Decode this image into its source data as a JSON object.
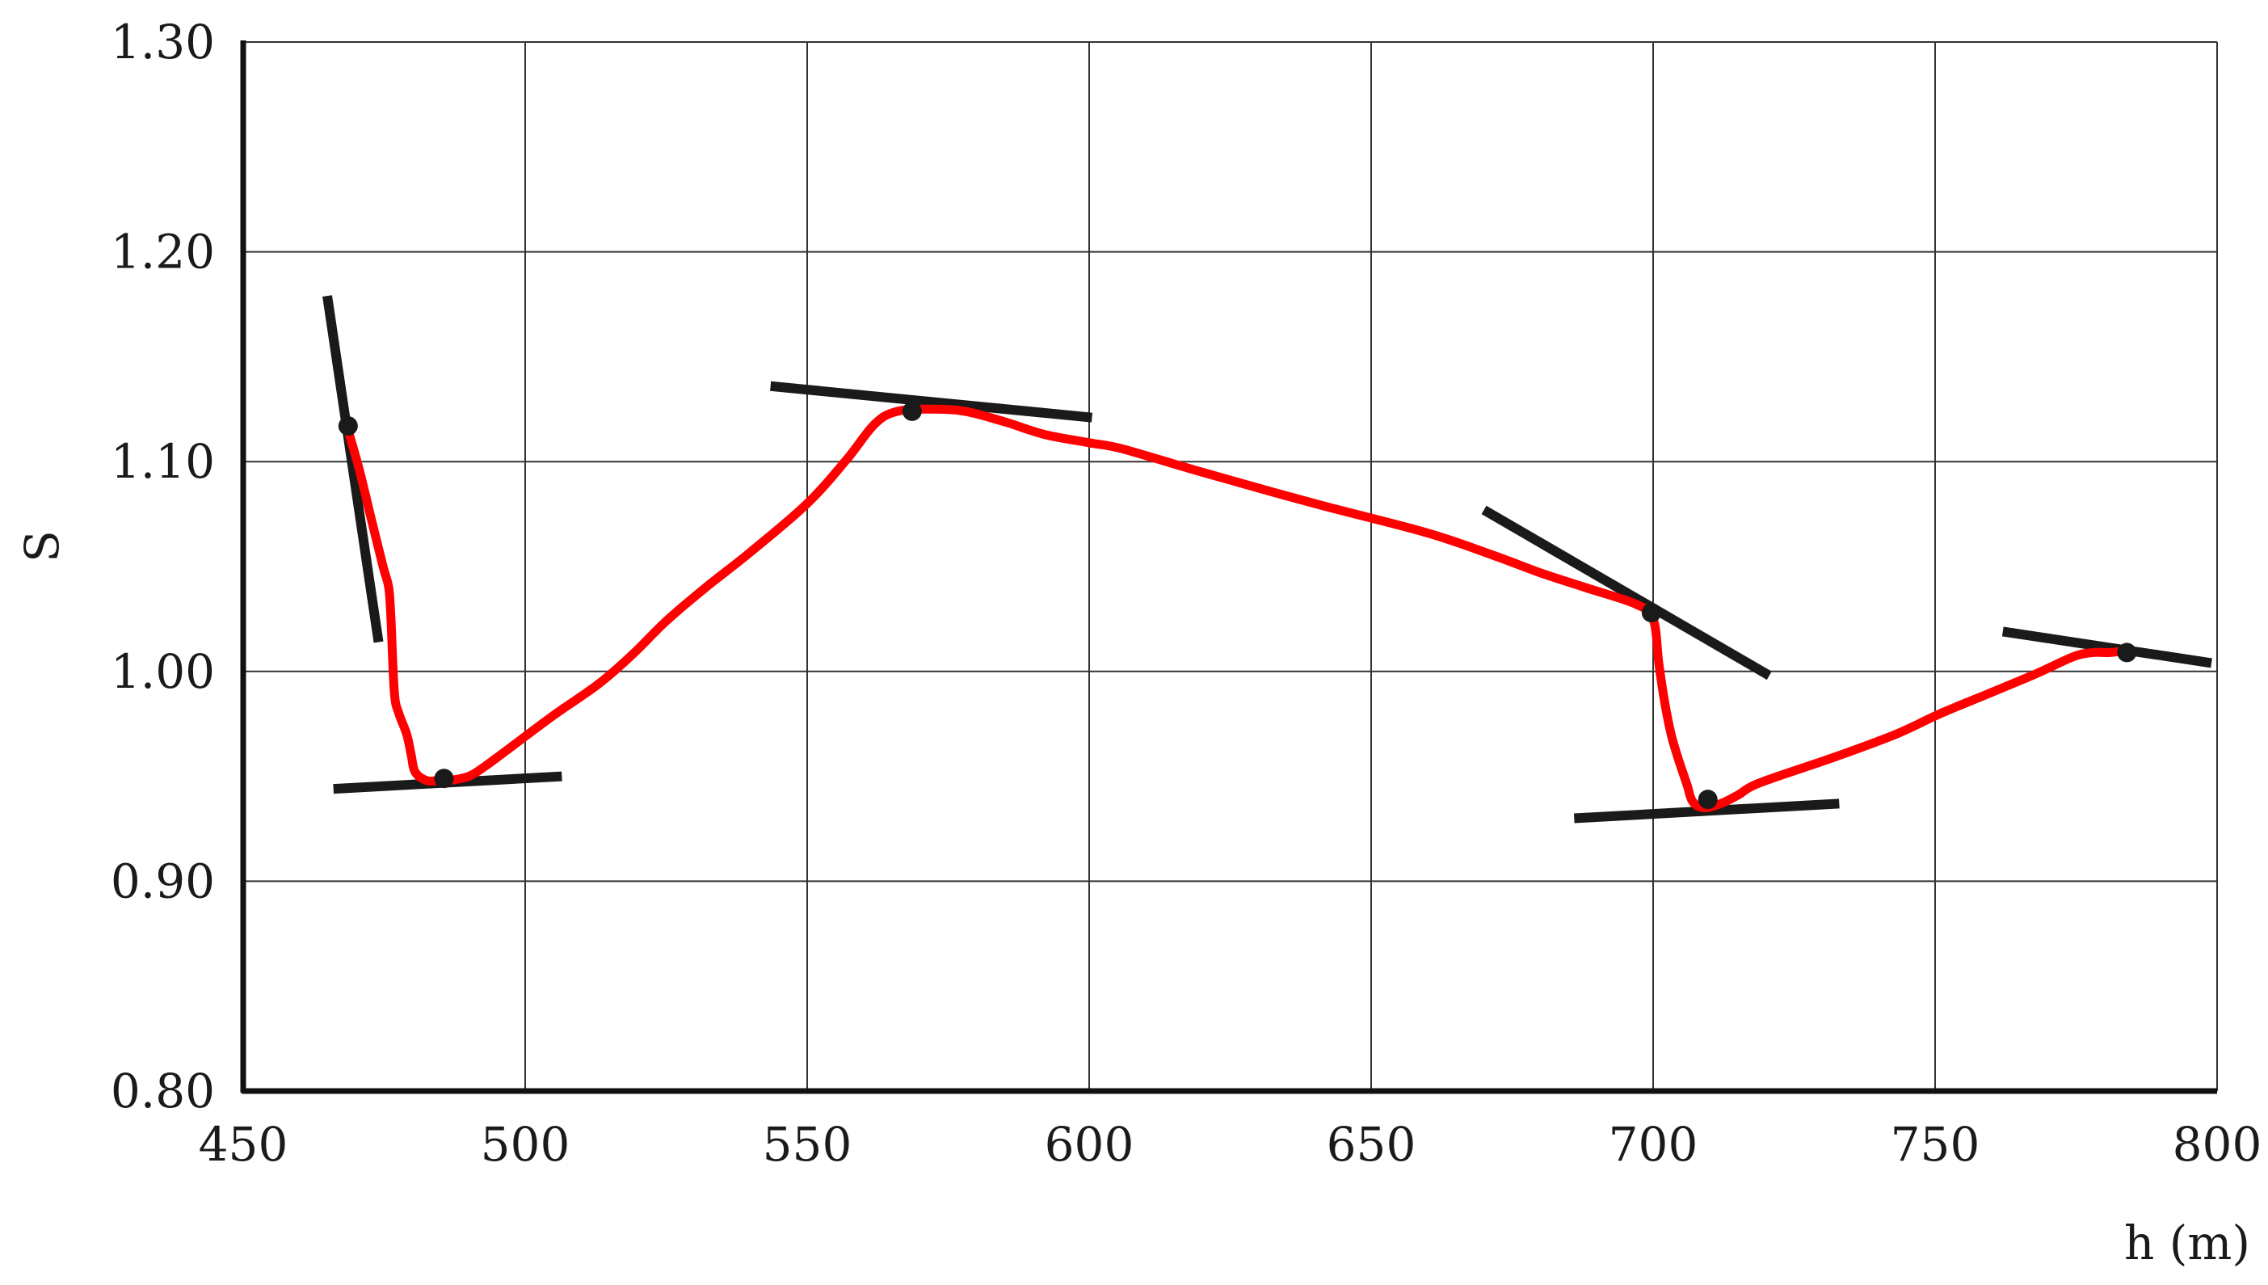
{
  "chart_data": {
    "type": "line",
    "title": "",
    "xlabel": "h (m)",
    "ylabel": "S",
    "xlim": [
      450,
      800
    ],
    "ylim": [
      0.8,
      1.3
    ],
    "x_ticks": [
      450,
      500,
      550,
      600,
      650,
      700,
      750,
      800
    ],
    "x_tick_labels": [
      "450",
      "500",
      "550",
      "600",
      "650",
      "700",
      "750",
      "800"
    ],
    "y_ticks": [
      0.8,
      0.9,
      1.0,
      1.1,
      1.2,
      1.3
    ],
    "y_tick_labels": [
      "0.80",
      "0.90",
      "1.00",
      "1.10",
      "1.20",
      "1.30"
    ],
    "grid": true,
    "colors": {
      "curve": "#ff0000",
      "tangent": "#1a1a1a",
      "grid": "#333333",
      "axis": "#111111"
    },
    "series": [
      {
        "color": "#ff0000",
        "points": [
          [
            468.6,
            1.115
          ],
          [
            470.6,
            1.096
          ],
          [
            472.5,
            1.075
          ],
          [
            474.8,
            1.05
          ],
          [
            475.8,
            1.04
          ],
          [
            476.2,
            1.025
          ],
          [
            476.8,
            0.99
          ],
          [
            477.6,
            0.98
          ],
          [
            479.0,
            0.97
          ],
          [
            479.8,
            0.96
          ],
          [
            480.5,
            0.952
          ],
          [
            482.5,
            0.948
          ],
          [
            484.5,
            0.948
          ],
          [
            486.4,
            0.948
          ],
          [
            490.0,
            0.95
          ],
          [
            493.0,
            0.955
          ],
          [
            497.0,
            0.963
          ],
          [
            505.0,
            0.979
          ],
          [
            513.0,
            0.994
          ],
          [
            519.0,
            1.008
          ],
          [
            525.0,
            1.024
          ],
          [
            532.0,
            1.04
          ],
          [
            540.0,
            1.057
          ],
          [
            550.0,
            1.08
          ],
          [
            557.0,
            1.101
          ],
          [
            562.0,
            1.118
          ],
          [
            566.0,
            1.124
          ],
          [
            572.0,
            1.125
          ],
          [
            578.0,
            1.124
          ],
          [
            585.0,
            1.119
          ],
          [
            592.0,
            1.113
          ],
          [
            600.0,
            1.109
          ],
          [
            606.0,
            1.106
          ],
          [
            620.0,
            1.095
          ],
          [
            640.0,
            1.08
          ],
          [
            660.0,
            1.066
          ],
          [
            672.0,
            1.055
          ],
          [
            680.0,
            1.047
          ],
          [
            688.0,
            1.04
          ],
          [
            697.0,
            1.032
          ],
          [
            700.0,
            1.025
          ],
          [
            701.0,
            1.004
          ],
          [
            702.0,
            0.986
          ],
          [
            703.2,
            0.97
          ],
          [
            704.5,
            0.958
          ],
          [
            706.0,
            0.946
          ],
          [
            707.0,
            0.938
          ],
          [
            709.0,
            0.935
          ],
          [
            712.0,
            0.937
          ],
          [
            715.0,
            0.941
          ],
          [
            719.0,
            0.947
          ],
          [
            732.0,
            0.959
          ],
          [
            743.0,
            0.97
          ],
          [
            751.0,
            0.98
          ],
          [
            760.0,
            0.99
          ],
          [
            768.0,
            0.999
          ],
          [
            774.5,
            1.007
          ],
          [
            778.0,
            1.009
          ],
          [
            781.0,
            1.009
          ],
          [
            784.0,
            1.01
          ]
        ]
      }
    ],
    "marked_points": [
      {
        "x": 468.6,
        "y": 1.117
      },
      {
        "x": 485.6,
        "y": 0.949
      },
      {
        "x": 568.6,
        "y": 1.124
      },
      {
        "x": 699.7,
        "y": 1.028
      },
      {
        "x": 709.7,
        "y": 0.939
      },
      {
        "x": 784.0,
        "y": 1.009
      }
    ],
    "tangent_lines": [
      {
        "x1": 464.9,
        "y1": 1.179,
        "x2": 474.0,
        "y2": 1.014
      },
      {
        "x1": 466.0,
        "y1": 0.944,
        "x2": 506.5,
        "y2": 0.95
      },
      {
        "x1": 543.5,
        "y1": 1.136,
        "x2": 600.5,
        "y2": 1.121
      },
      {
        "x1": 670.0,
        "y1": 1.077,
        "x2": 720.6,
        "y2": 0.998
      },
      {
        "x1": 686.0,
        "y1": 0.93,
        "x2": 733.0,
        "y2": 0.937
      },
      {
        "x1": 762.0,
        "y1": 1.019,
        "x2": 799.0,
        "y2": 1.004
      }
    ]
  }
}
